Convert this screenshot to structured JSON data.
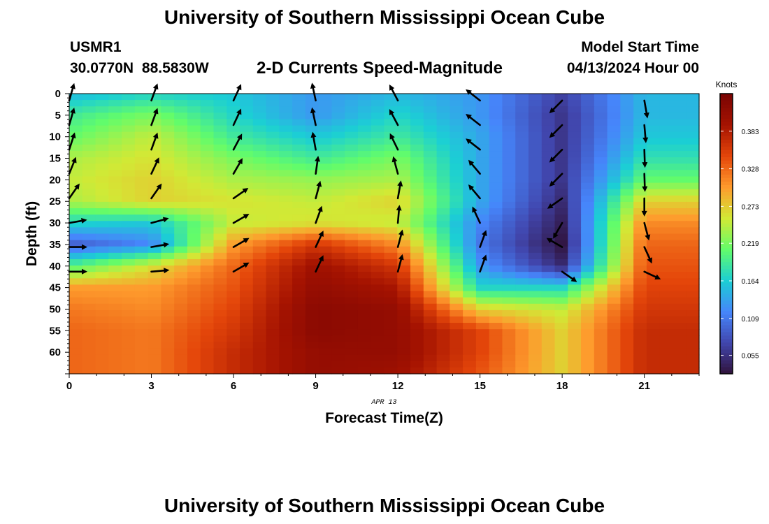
{
  "header": {
    "title": "University of Southern Mississippi Ocean Cube",
    "station_id": "USMR1",
    "coordinates": "30.0770N  88.5830W",
    "plot_title": "2-D Currents Speed-Magnitude",
    "model_start_label": "Model Start Time",
    "model_start_value": "04/13/2024 Hour 00"
  },
  "footer": {
    "title": "University of Southern Mississippi Ocean Cube"
  },
  "chart_data": {
    "type": "heatmap",
    "xlabel": "Forecast Time(Z)",
    "ylabel": "Depth (ft)",
    "x_ticks": [
      0,
      3,
      6,
      9,
      12,
      15,
      18,
      21
    ],
    "y_ticks": [
      0,
      5,
      10,
      15,
      20,
      25,
      30,
      35,
      40,
      45,
      50,
      55,
      60
    ],
    "xlim": [
      0,
      23
    ],
    "ylim": [
      0,
      65
    ],
    "date_label": "APR 13",
    "colorbar": {
      "title": "Knots",
      "range": [
        0.028,
        0.438
      ],
      "tick_values": [
        0.055,
        0.109,
        0.164,
        0.219,
        0.273,
        0.328,
        0.383
      ],
      "tick_labels": [
        "0.055",
        "0.109",
        "0.164",
        "0.219",
        "0.273",
        "0.328",
        "0.383"
      ],
      "colors": [
        "#30123b",
        "#4146ad",
        "#4686fb",
        "#1bcfd4",
        "#62fc6b",
        "#d2e935",
        "#fe9b2d",
        "#e4460a",
        "#a51301",
        "#7a0403"
      ]
    },
    "hours": [
      0,
      3,
      6,
      9,
      12,
      15,
      18,
      21
    ],
    "depths": [
      0,
      5,
      10,
      15,
      20,
      25,
      30,
      35,
      40,
      45,
      50,
      55,
      60,
      65
    ],
    "speed": [
      [
        0.15,
        0.17,
        0.16,
        0.13,
        0.15,
        0.13,
        0.07,
        0.15
      ],
      [
        0.19,
        0.22,
        0.17,
        0.13,
        0.17,
        0.13,
        0.06,
        0.15
      ],
      [
        0.21,
        0.25,
        0.19,
        0.16,
        0.19,
        0.14,
        0.06,
        0.16
      ],
      [
        0.24,
        0.26,
        0.22,
        0.19,
        0.22,
        0.14,
        0.06,
        0.18
      ],
      [
        0.25,
        0.27,
        0.24,
        0.23,
        0.24,
        0.14,
        0.06,
        0.21
      ],
      [
        0.24,
        0.27,
        0.26,
        0.25,
        0.27,
        0.14,
        0.05,
        0.27
      ],
      [
        0.17,
        0.16,
        0.25,
        0.26,
        0.25,
        0.12,
        0.04,
        0.31
      ],
      [
        0.09,
        0.12,
        0.3,
        0.36,
        0.31,
        0.11,
        0.03,
        0.33
      ],
      [
        0.2,
        0.26,
        0.33,
        0.4,
        0.36,
        0.13,
        0.05,
        0.34
      ],
      [
        0.3,
        0.3,
        0.34,
        0.41,
        0.39,
        0.17,
        0.17,
        0.35
      ],
      [
        0.32,
        0.31,
        0.35,
        0.42,
        0.41,
        0.27,
        0.25,
        0.36
      ],
      [
        0.33,
        0.32,
        0.36,
        0.42,
        0.41,
        0.35,
        0.27,
        0.37
      ],
      [
        0.33,
        0.32,
        0.37,
        0.41,
        0.41,
        0.35,
        0.27,
        0.37
      ],
      [
        0.33,
        0.32,
        0.37,
        0.41,
        0.4,
        0.34,
        0.27,
        0.37
      ]
    ],
    "vectors": {
      "hours": [
        0,
        3,
        6,
        9,
        12,
        15,
        18,
        21
      ],
      "depths": [
        1.6,
        7.3,
        13,
        18.6,
        24.3,
        30,
        35.6,
        41.3
      ],
      "direction_deg": [
        [
          16,
          20,
          25,
          -12,
          -28,
          -52,
          -135,
          170
        ],
        [
          16,
          20,
          25,
          -12,
          -28,
          -52,
          -135,
          175
        ],
        [
          18,
          20,
          28,
          -10,
          -26,
          -52,
          -135,
          178
        ],
        [
          22,
          25,
          30,
          8,
          -15,
          -40,
          -135,
          178
        ],
        [
          35,
          35,
          55,
          15,
          10,
          -40,
          -125,
          180
        ],
        [
          80,
          75,
          60,
          20,
          5,
          -25,
          -150,
          165
        ],
        [
          90,
          80,
          60,
          25,
          15,
          20,
          -60,
          155
        ],
        [
          90,
          85,
          60,
          25,
          15,
          20,
          125,
          115
        ]
      ]
    }
  }
}
